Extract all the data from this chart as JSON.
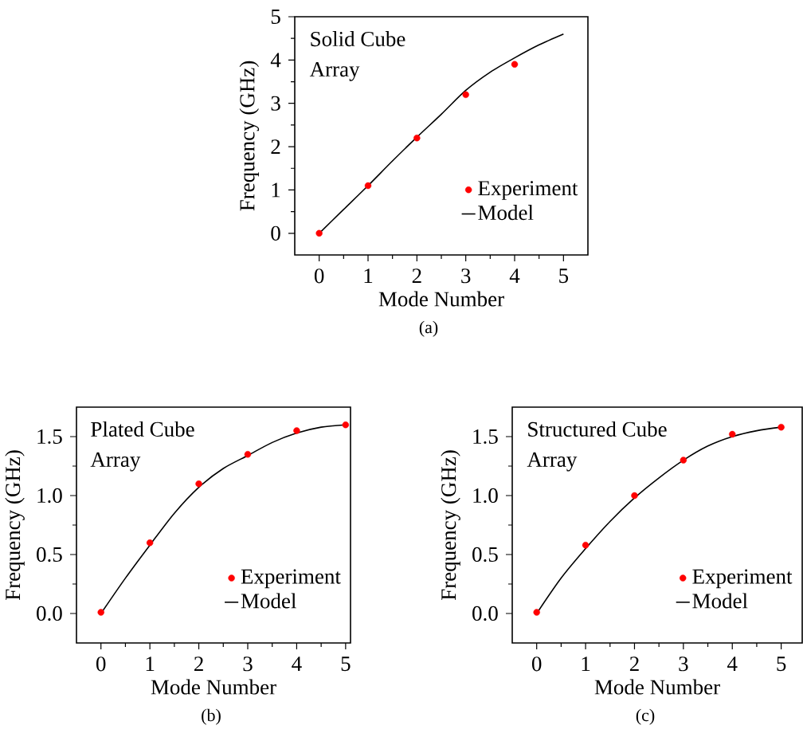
{
  "chart_data": [
    {
      "type": "line",
      "title": "Solid Cube",
      "subtitle": "Array",
      "xlabel": "Mode Number",
      "ylabel": "Frequency (GHz)",
      "annotations": [
        "(a)"
      ],
      "xlim": [
        -0.5,
        5.5
      ],
      "ylim": [
        -0.5,
        5
      ],
      "xticks": [
        0,
        1,
        2,
        3,
        4,
        5
      ],
      "yticks": [
        0,
        1,
        2,
        3,
        4,
        5
      ],
      "legend": "bottom right",
      "series": [
        {
          "name": "Experiment",
          "type": "scatter",
          "marker": "circle",
          "color": "#ff0000",
          "x": [
            0,
            1,
            2,
            3,
            4
          ],
          "values": [
            0,
            1.1,
            2.2,
            3.2,
            3.9
          ]
        },
        {
          "name": "Model",
          "type": "line",
          "color": "#000000",
          "x": [
            0,
            0.5,
            1,
            1.5,
            2,
            2.5,
            3,
            3.5,
            4,
            4.5,
            5
          ],
          "values": [
            0,
            0.55,
            1.1,
            1.67,
            2.22,
            2.75,
            3.3,
            3.72,
            4.05,
            4.35,
            4.6
          ]
        }
      ]
    },
    {
      "type": "line",
      "title": "Plated Cube",
      "subtitle": "Array",
      "xlabel": "Mode Number",
      "ylabel": "Frequency (GHz)",
      "annotations": [
        "(b)"
      ],
      "xlim": [
        -0.5,
        5.1
      ],
      "ylim": [
        -0.25,
        1.75
      ],
      "xticks": [
        0,
        1,
        2,
        3,
        4,
        5
      ],
      "yticks": [
        {
          "value": 0,
          "label": "0.0"
        },
        {
          "value": 0.5,
          "label": "0.5"
        },
        {
          "value": 1,
          "label": "1.0"
        },
        {
          "value": 1.5,
          "label": "1.5"
        }
      ],
      "legend": "bottom right",
      "series": [
        {
          "name": "Experiment",
          "type": "scatter",
          "marker": "circle",
          "color": "#ff0000",
          "x": [
            0,
            1,
            2,
            3,
            4,
            5
          ],
          "values": [
            0.01,
            0.6,
            1.1,
            1.35,
            1.55,
            1.6
          ]
        },
        {
          "name": "Model",
          "type": "line",
          "color": "#000000",
          "x": [
            0,
            0.5,
            1,
            1.5,
            2,
            2.5,
            3,
            3.5,
            4,
            4.5,
            5
          ],
          "values": [
            0,
            0.3,
            0.58,
            0.85,
            1.07,
            1.23,
            1.34,
            1.45,
            1.53,
            1.58,
            1.6
          ]
        }
      ]
    },
    {
      "type": "line",
      "title": "Structured Cube",
      "subtitle": "Array",
      "xlabel": "Mode Number",
      "ylabel": "Frequency (GHz)",
      "annotations": [
        "(c)"
      ],
      "xlim": [
        -0.5,
        5.43
      ],
      "ylim": [
        -0.25,
        1.75
      ],
      "xticks": [
        0,
        1,
        2,
        3,
        4,
        5
      ],
      "yticks": [
        {
          "value": 0,
          "label": "0.0"
        },
        {
          "value": 0.5,
          "label": "0.5"
        },
        {
          "value": 1,
          "label": "1.0"
        },
        {
          "value": 1.5,
          "label": "1.5"
        }
      ],
      "legend": "bottom right",
      "series": [
        {
          "name": "Experiment",
          "type": "scatter",
          "marker": "circle",
          "color": "#ff0000",
          "x": [
            0,
            1,
            2,
            3,
            4,
            5
          ],
          "values": [
            0.01,
            0.58,
            1.0,
            1.3,
            1.52,
            1.58
          ]
        },
        {
          "name": "Model",
          "type": "line",
          "color": "#000000",
          "x": [
            0,
            0.5,
            1,
            1.5,
            2,
            2.5,
            3,
            3.5,
            4,
            4.5,
            5
          ],
          "values": [
            0,
            0.3,
            0.55,
            0.78,
            0.98,
            1.15,
            1.3,
            1.42,
            1.5,
            1.55,
            1.58
          ]
        }
      ]
    }
  ]
}
